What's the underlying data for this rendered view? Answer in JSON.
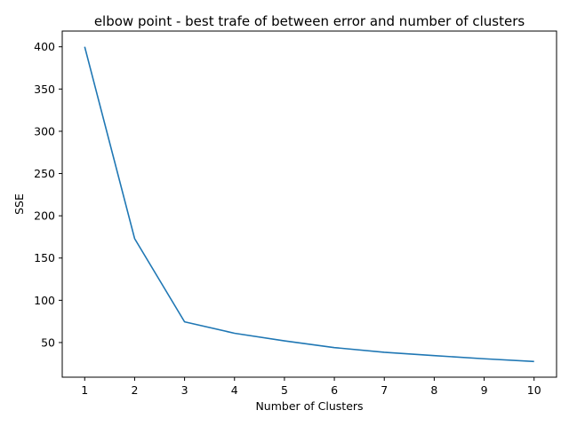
{
  "chart_data": {
    "type": "line",
    "title": "elbow point - best trafe of between error and number of clusters",
    "xlabel": "Number of Clusters",
    "ylabel": "SSE",
    "x": [
      1,
      2,
      3,
      4,
      5,
      6,
      7,
      8,
      9,
      10
    ],
    "series": [
      {
        "values": [
          400,
          173,
          74.5,
          61,
          52,
          44,
          38.5,
          34.5,
          30.8,
          27.6
        ]
      }
    ],
    "xticks": [
      1,
      2,
      3,
      4,
      5,
      6,
      7,
      8,
      9,
      10
    ],
    "yticks": [
      50,
      100,
      150,
      200,
      250,
      300,
      350,
      400
    ],
    "xlim": [
      0.55,
      10.45
    ],
    "ylim": [
      9.0,
      418.6
    ],
    "grid": false,
    "line_color": "#1f77b4"
  }
}
